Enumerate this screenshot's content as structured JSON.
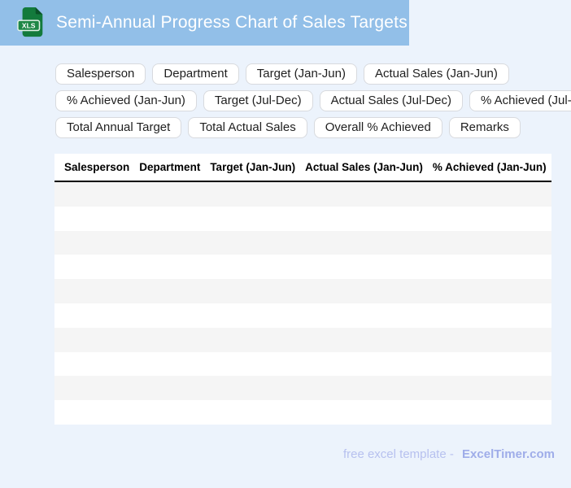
{
  "header": {
    "title": "Semi-Annual Progress Chart of Sales Targets",
    "file_icon_label": "XLS"
  },
  "chips": {
    "rows": [
      [
        "Salesperson",
        "Department",
        "Target (Jan-Jun)",
        "Actual Sales (Jan-Jun)"
      ],
      [
        "% Achieved (Jan-Jun)",
        "Target (Jul-Dec)",
        "Actual Sales (Jul-Dec)",
        "% Achieved (Jul-Dec)"
      ],
      [
        "Total Annual Target",
        "Total Actual Sales",
        "Overall % Achieved",
        "Remarks"
      ]
    ]
  },
  "table": {
    "visible_columns": [
      "Salesperson",
      "Department",
      "Target (Jan-Jun)",
      "Actual Sales (Jan-Jun)",
      "% Achieved (Jan-Jun)"
    ],
    "empty_row_count": 10,
    "rows": []
  },
  "footer": {
    "text": "free excel template -",
    "brand": "ExcelTimer.com"
  },
  "colors": {
    "header_bar": "#92bfe8",
    "page_background": "#ecf3fc",
    "icon_green": "#137a3c",
    "icon_fold_green": "#0a5228",
    "row_stripe": "#f5f5f5",
    "footer_text": "#b7c1ef",
    "footer_brand": "#9fade9"
  }
}
